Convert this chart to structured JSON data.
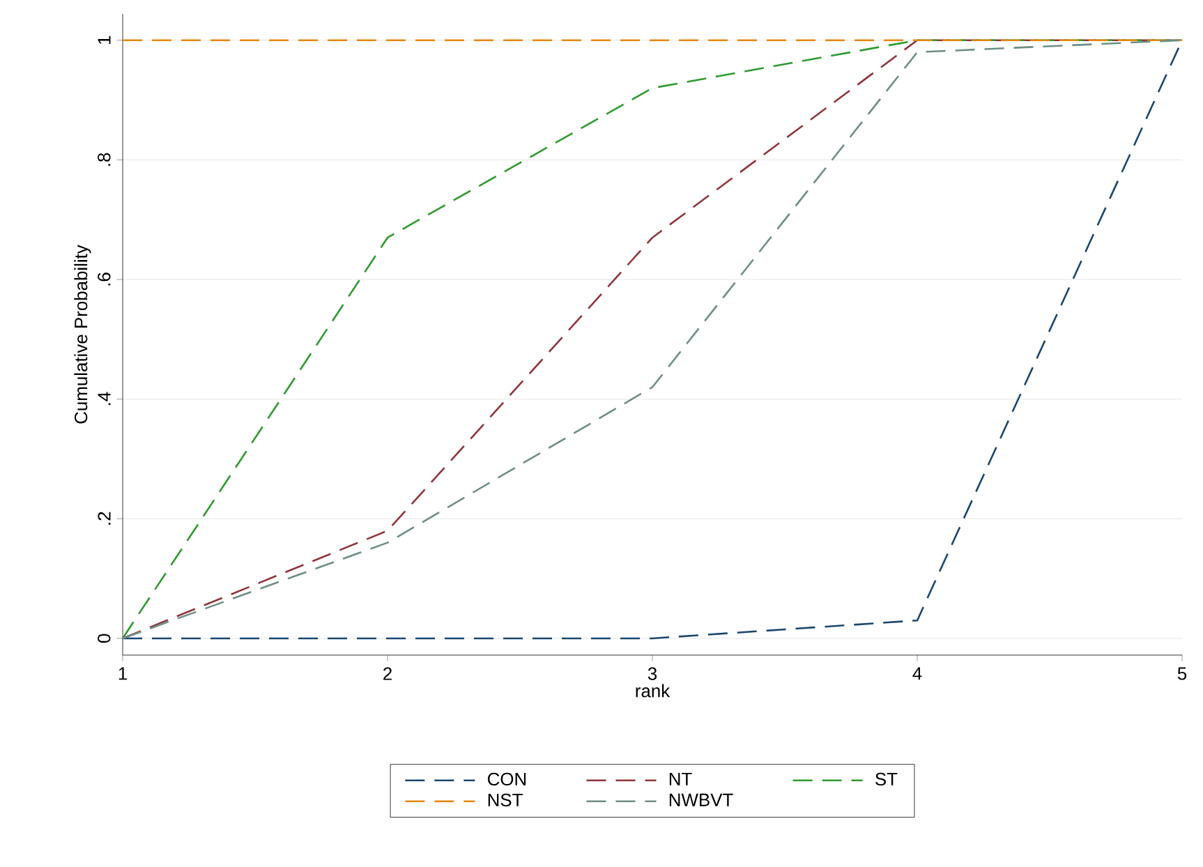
{
  "chart_data": {
    "type": "line",
    "xlabel": "rank",
    "ylabel": "Cumulative Probability",
    "x": [
      1,
      2,
      3,
      4,
      5
    ],
    "series": [
      {
        "name": "CON",
        "color": "#1a476f",
        "values": [
          0,
          0,
          0,
          0.03,
          1
        ]
      },
      {
        "name": "NT",
        "color": "#90353b",
        "values": [
          0,
          0.18,
          0.67,
          1,
          1
        ]
      },
      {
        "name": "ST",
        "color": "#2e9a2e",
        "values": [
          0,
          0.67,
          0.92,
          1,
          1
        ]
      },
      {
        "name": "NST",
        "color": "#e8870e",
        "values": [
          1,
          1,
          1,
          1,
          1
        ]
      },
      {
        "name": "NWBVT",
        "color": "#6e8e84",
        "values": [
          0,
          0.16,
          0.42,
          0.98,
          1
        ]
      }
    ],
    "xlim": [
      1,
      5
    ],
    "xticks": [
      1,
      2,
      3,
      4,
      5
    ],
    "ylim": [
      -0.028,
      1.044
    ],
    "yticks": [
      0,
      {
        "value": 0.2,
        "label": ".2"
      },
      {
        "value": 0.4,
        "label": ".4"
      },
      {
        "value": 0.6,
        "label": ".6"
      },
      {
        "value": 0.8,
        "label": ".8"
      },
      1
    ],
    "grid": "y",
    "legend": "bottom",
    "line_style": "dashed"
  }
}
